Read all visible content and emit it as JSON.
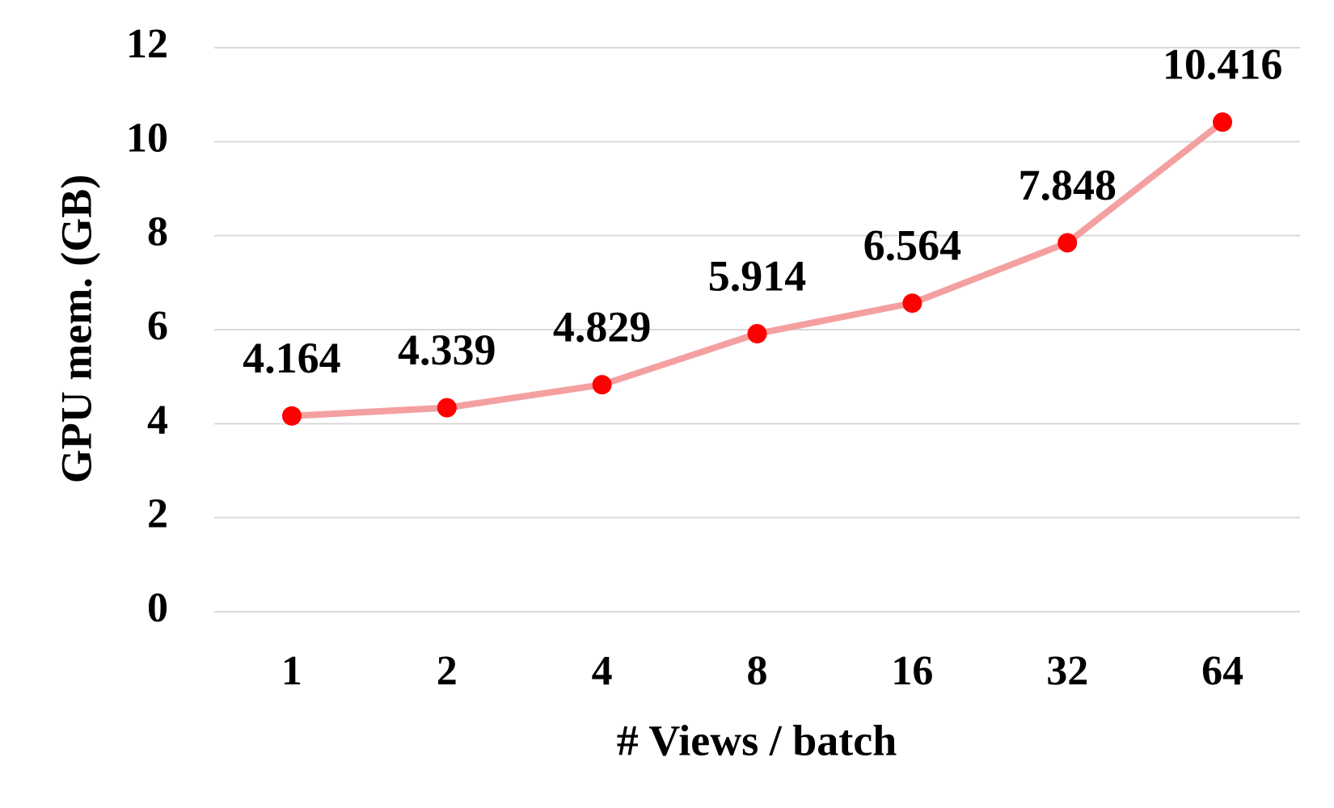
{
  "chart_data": {
    "type": "line",
    "x_label": "# Views / batch",
    "y_label": "GPU mem. (GB)",
    "categories": [
      "1",
      "2",
      "4",
      "8",
      "16",
      "32",
      "64"
    ],
    "series": [
      {
        "color": "#f4a0a0",
        "marker_color": "#ff0000",
        "values": [
          4.164,
          4.339,
          4.829,
          5.914,
          6.564,
          7.848,
          10.416
        ]
      }
    ],
    "ylim": [
      0,
      12
    ],
    "yticks": [
      0,
      2,
      4,
      6,
      8,
      10,
      12
    ],
    "grid": true
  }
}
